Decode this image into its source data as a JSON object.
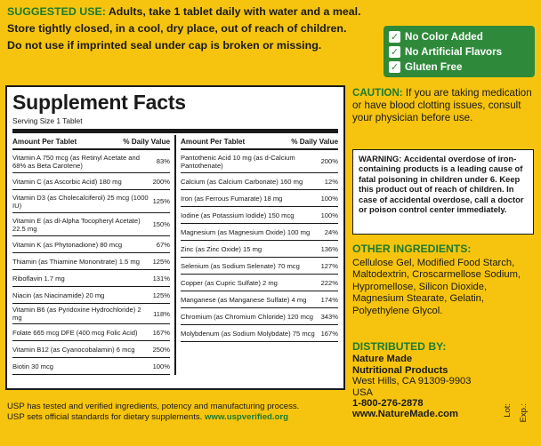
{
  "directions": {
    "label": "SUGGESTED USE:",
    "line1": " Adults, take 1 tablet daily with water and a meal.",
    "line2": "Store tightly closed, in a cool, dry place, out of reach of children.",
    "line3": "Do not use if imprinted seal under cap is broken or missing."
  },
  "badges": [
    "No Color Added",
    "No Artificial Flavors",
    "Gluten Free"
  ],
  "facts": {
    "title": "Supplement Facts",
    "serving": "Serving Size 1 Tablet",
    "header_amount": "Amount Per Tablet",
    "header_dv": "% Daily Value",
    "left": [
      {
        "name": "Vitamin A 750 mcg (as Retinyl Acetate and 68% as Beta Carotene)",
        "dv": "83%"
      },
      {
        "name": "Vitamin C (as Ascorbic Acid) 180 mg",
        "dv": "200%"
      },
      {
        "name": "Vitamin D3 (as Cholecalciferol) 25 mcg (1000 IU)",
        "dv": "125%"
      },
      {
        "name": "Vitamin E (as dl-Alpha Tocopheryl Acetate) 22.5 mg",
        "dv": "150%"
      },
      {
        "name": "Vitamin K (as Phytonadione) 80 mcg",
        "dv": "67%"
      },
      {
        "name": "Thiamin (as Thiamine Mononitrate) 1.5 mg",
        "dv": "125%"
      },
      {
        "name": "Riboflavin 1.7 mg",
        "dv": "131%"
      },
      {
        "name": "Niacin (as Niacinamide) 20 mg",
        "dv": "125%"
      },
      {
        "name": "Vitamin B6 (as Pyridoxine Hydrochloride) 2 mg",
        "dv": "118%"
      },
      {
        "name": "Folate 665 mcg DFE (400 mcg Folic Acid)",
        "dv": "167%"
      },
      {
        "name": "Vitamin B12 (as Cyanocobalamin) 6 mcg",
        "dv": "250%"
      },
      {
        "name": "Biotin 30 mcg",
        "dv": "100%"
      }
    ],
    "right": [
      {
        "name": "Pantothenic Acid 10 mg (as d-Calcium Pantothenate)",
        "dv": "200%"
      },
      {
        "name": "Calcium (as Calcium Carbonate) 160 mg",
        "dv": "12%"
      },
      {
        "name": "Iron (as Ferrous Fumarate) 18 mg",
        "dv": "100%"
      },
      {
        "name": "Iodine (as Potassium Iodide) 150 mcg",
        "dv": "100%"
      },
      {
        "name": "Magnesium (as Magnesium Oxide) 100 mg",
        "dv": "24%"
      },
      {
        "name": "Zinc (as Zinc Oxide) 15 mg",
        "dv": "136%"
      },
      {
        "name": "Selenium (as Sodium Selenate) 70 mcg",
        "dv": "127%"
      },
      {
        "name": "Copper (as Cupric Sulfate) 2 mg",
        "dv": "222%"
      },
      {
        "name": "Manganese (as Manganese Sulfate) 4 mg",
        "dv": "174%"
      },
      {
        "name": "Chromium (as Chromium Chloride) 120 mcg",
        "dv": "343%"
      },
      {
        "name": "Molybdenum (as Sodium Molybdate) 75 mcg",
        "dv": "167%"
      }
    ]
  },
  "usp": {
    "line1": "USP has tested and verified ingredients, potency and manufacturing process.",
    "line2_prefix": "USP sets official standards for dietary supplements. ",
    "line2_link": "www.uspverified.org"
  },
  "caution": {
    "label": "CAUTION:",
    "text": " If you are taking medication or have blood clotting issues, consult your physician before use."
  },
  "warning": {
    "label": "WARNING:",
    "text": " Accidental overdose of iron-containing products is a leading cause of fatal poisoning in children under 6. Keep this product out of reach of children. In case of accidental overdose, call a doctor or poison control center immediately."
  },
  "other_ingredients": {
    "label": "OTHER INGREDIENTS:",
    "text": "Cellulose Gel, Modified Food Starch, Maltodextrin, Croscarmellose Sodium, Hypromellose, Silicon Dioxide, Magnesium Stearate, Gelatin, Polyethylene Glycol."
  },
  "distributor": {
    "label": "DISTRIBUTED BY:",
    "name1": "Nature Made",
    "name2": "Nutritional Products",
    "city": "West Hills, CA 91309-9903",
    "country": "USA",
    "phone": "1-800-276-2878",
    "web": "www.NatureMade.com"
  },
  "codes": {
    "lot": "Lot:",
    "exp": "Exp.:"
  },
  "colors": {
    "background": "#f6c40f",
    "accent_green": "#1c7a2e",
    "badge_green": "#2e8a3a"
  },
  "icons": {
    "badge": "check-icon"
  }
}
